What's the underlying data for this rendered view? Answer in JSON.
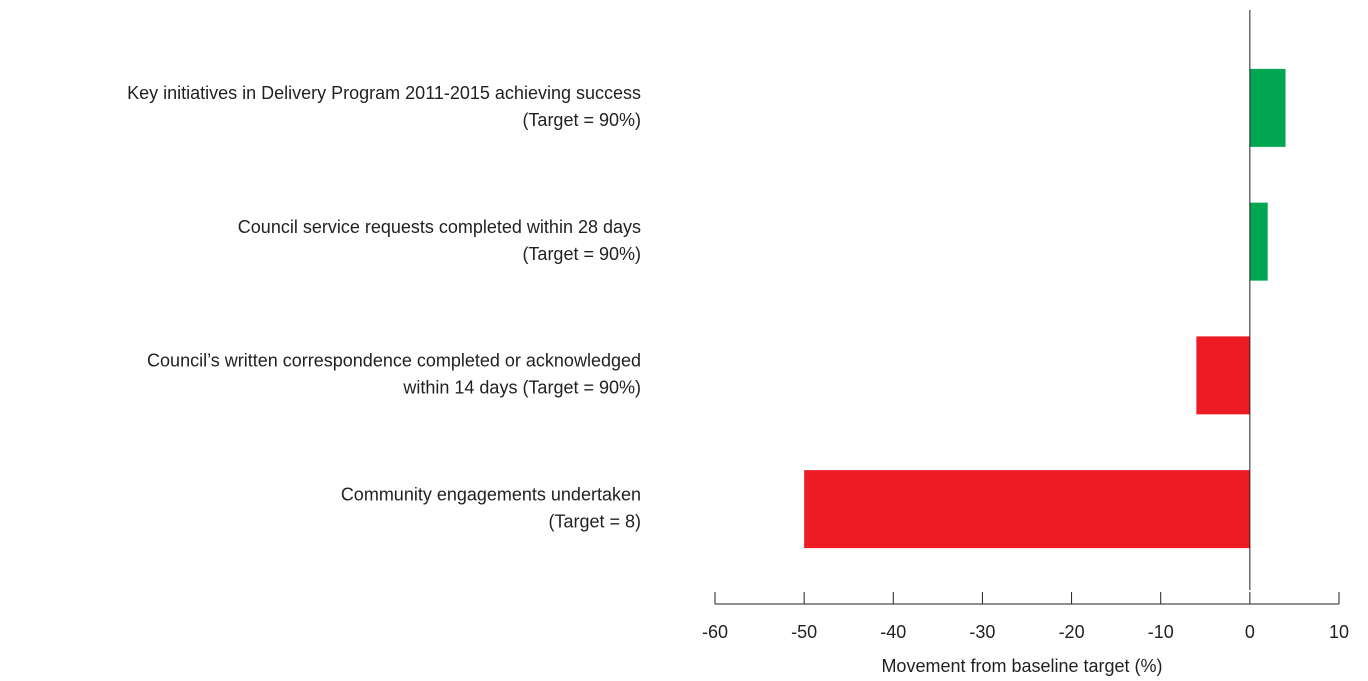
{
  "chart_data": {
    "type": "bar",
    "orientation": "horizontal",
    "x_label": "Movement from baseline target (%)",
    "categories": [
      [
        "Key initiatives in Delivery Program 2011-2015 achieving success",
        "(Target = 90%)"
      ],
      [
        "Council service requests completed within 28 days",
        "(Target = 90%)"
      ],
      [
        "Council’s written correspondence completed or acknowledged",
        "within 14 days (Target = 90%)"
      ],
      [
        "Community engagements undertaken",
        "(Target = 8)"
      ]
    ],
    "values": [
      4,
      2,
      -6,
      -50
    ],
    "colors": [
      "#00a651",
      "#00a651",
      "#ed1c24",
      "#ed1c24"
    ],
    "xlim": [
      -60,
      10
    ],
    "xticks": [
      -60,
      -50,
      -40,
      -30,
      -20,
      -10,
      0,
      10
    ]
  }
}
